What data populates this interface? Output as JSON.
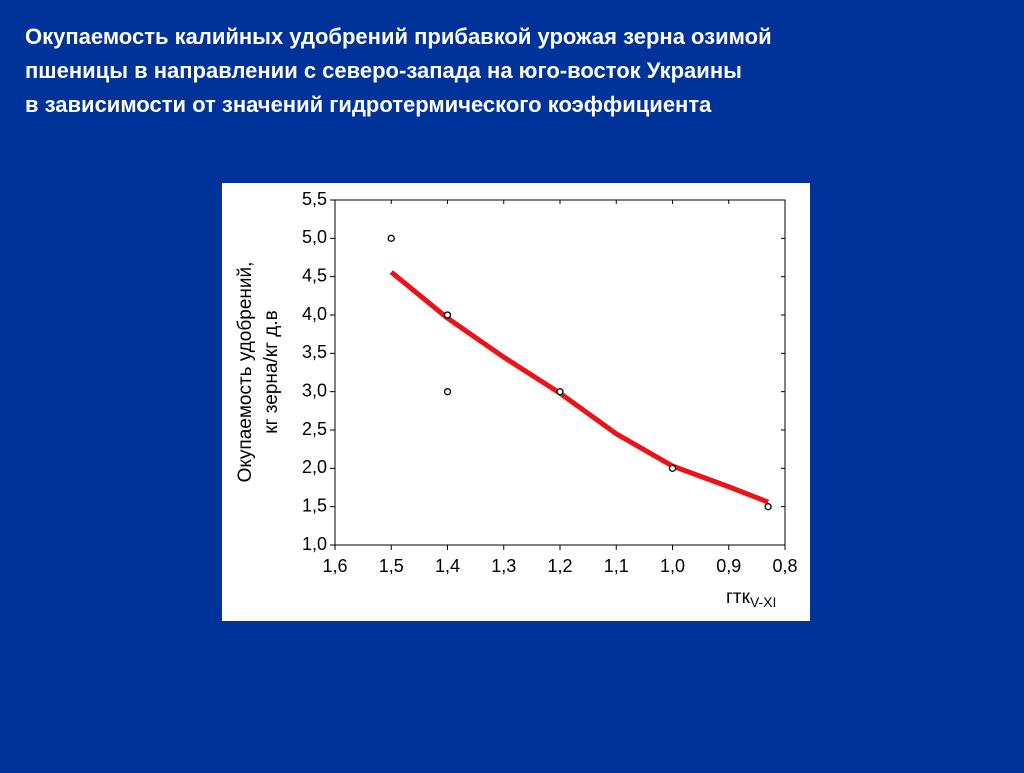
{
  "title": [
    "Окупаемость калийных удобрений прибавкой урожая зерна озимой",
    "пшеницы в направлении с северо-запада на юго-восток Украины",
    "в зависимости от значений гидротермического коэффициента"
  ],
  "chart_data": {
    "type": "scatter",
    "y_label": [
      "Окупаемость удобрений,",
      "кг зерна/кг д.в"
    ],
    "x_label": "гтк",
    "x_label_subscript": "V-XI",
    "xlim": [
      1.6,
      0.8
    ],
    "xticks": [
      {
        "value": 1.6,
        "label": "1,6"
      },
      {
        "value": 1.5,
        "label": "1,5"
      },
      {
        "value": 1.4,
        "label": "1,4"
      },
      {
        "value": 1.3,
        "label": "1,3"
      },
      {
        "value": 1.2,
        "label": "1,2"
      },
      {
        "value": 1.1,
        "label": "1,1"
      },
      {
        "value": 1.0,
        "label": "1,0"
      },
      {
        "value": 0.9,
        "label": "0,9"
      },
      {
        "value": 0.8,
        "label": "0,8"
      }
    ],
    "ylim": [
      1.0,
      5.5
    ],
    "yticks": [
      {
        "value": 1.0,
        "label": "1,0"
      },
      {
        "value": 1.5,
        "label": "1,5"
      },
      {
        "value": 2.0,
        "label": "2,0"
      },
      {
        "value": 2.5,
        "label": "2,5"
      },
      {
        "value": 3.0,
        "label": "3,0"
      },
      {
        "value": 3.5,
        "label": "3,5"
      },
      {
        "value": 4.0,
        "label": "4,0"
      },
      {
        "value": 4.5,
        "label": "4,5"
      },
      {
        "value": 5.0,
        "label": "5,0"
      },
      {
        "value": 5.5,
        "label": "5,5"
      }
    ],
    "series": [
      {
        "type": "scatter",
        "color": "#000000",
        "x": [
          1.5,
          1.4,
          1.4,
          1.2,
          1.0,
          0.83
        ],
        "values": [
          5.0,
          4.0,
          3.0,
          3.0,
          2.0,
          1.5
        ]
      },
      {
        "type": "line",
        "color": "#e8141a",
        "x": [
          1.5,
          1.4,
          1.3,
          1.2,
          1.1,
          1.0,
          0.9,
          0.83
        ],
        "values": [
          4.56,
          3.96,
          3.45,
          2.98,
          2.45,
          2.03,
          1.76,
          1.56
        ]
      }
    ]
  }
}
